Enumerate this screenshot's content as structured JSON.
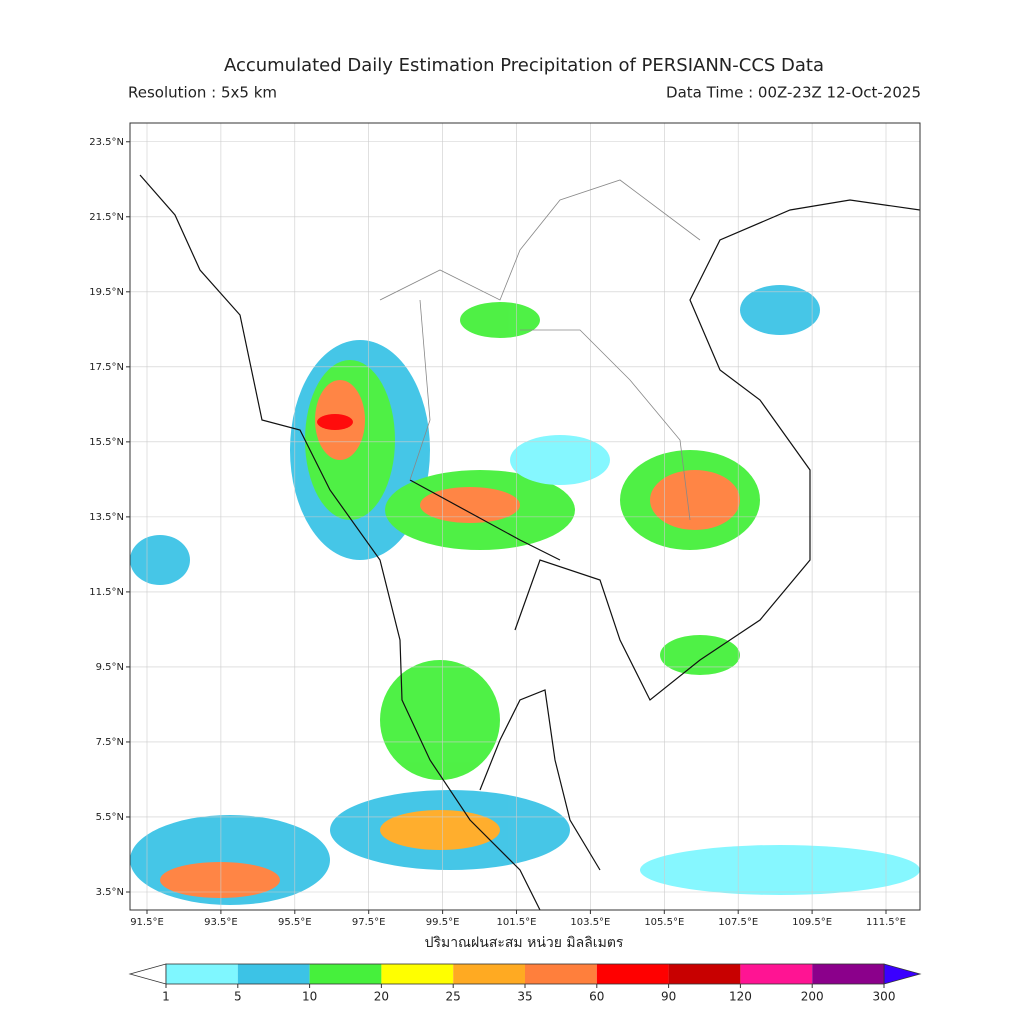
{
  "title": "Accumulated Daily Estimation Precipitation of PERSIANN-CCS Data",
  "resolution": "Resolution : 5x5 km",
  "data_time": "Data Time : 00Z-23Z 12-Oct-2025",
  "axis_label": "ปริมาณฝนสะสม หน่วย มิลลิเมตร",
  "map": {
    "xlim": [
      91.04,
      112.42
    ],
    "ylim": [
      3.02,
      24.0
    ],
    "xticks": [
      {
        "value": 91.5,
        "label": "91.5°E"
      },
      {
        "value": 93.5,
        "label": "93.5°E"
      },
      {
        "value": 95.5,
        "label": "95.5°E"
      },
      {
        "value": 97.5,
        "label": "97.5°E"
      },
      {
        "value": 99.5,
        "label": "99.5°E"
      },
      {
        "value": 101.5,
        "label": "101.5°E"
      },
      {
        "value": 103.5,
        "label": "103.5°E"
      },
      {
        "value": 105.5,
        "label": "105.5°E"
      },
      {
        "value": 107.5,
        "label": "107.5°E"
      },
      {
        "value": 109.5,
        "label": "109.5°E"
      },
      {
        "value": 111.5,
        "label": "111.5°E"
      }
    ],
    "yticks": [
      {
        "value": 3.5,
        "label": "3.5°N"
      },
      {
        "value": 5.5,
        "label": "5.5°N"
      },
      {
        "value": 7.5,
        "label": "7.5°N"
      },
      {
        "value": 9.5,
        "label": "9.5°N"
      },
      {
        "value": 11.5,
        "label": "11.5°N"
      },
      {
        "value": 13.5,
        "label": "13.5°N"
      },
      {
        "value": 15.5,
        "label": "15.5°N"
      },
      {
        "value": 17.5,
        "label": "17.5°N"
      },
      {
        "value": 19.5,
        "label": "19.5°N"
      },
      {
        "value": 21.5,
        "label": "21.5°N"
      },
      {
        "value": 23.5,
        "label": "23.5°N"
      }
    ],
    "grid": true
  },
  "colorbar": {
    "levels": [
      1,
      5,
      10,
      20,
      25,
      35,
      60,
      90,
      120,
      200,
      300
    ],
    "colors": [
      "#7ff7ff",
      "#3cc3e6",
      "#46f03c",
      "#ffff00",
      "#ffaa22",
      "#ff7f3c",
      "#ff0000",
      "#c80000",
      "#ff1493",
      "#8b008b"
    ],
    "under_color": "#ffffff",
    "over_color": "#3a00ff"
  }
}
